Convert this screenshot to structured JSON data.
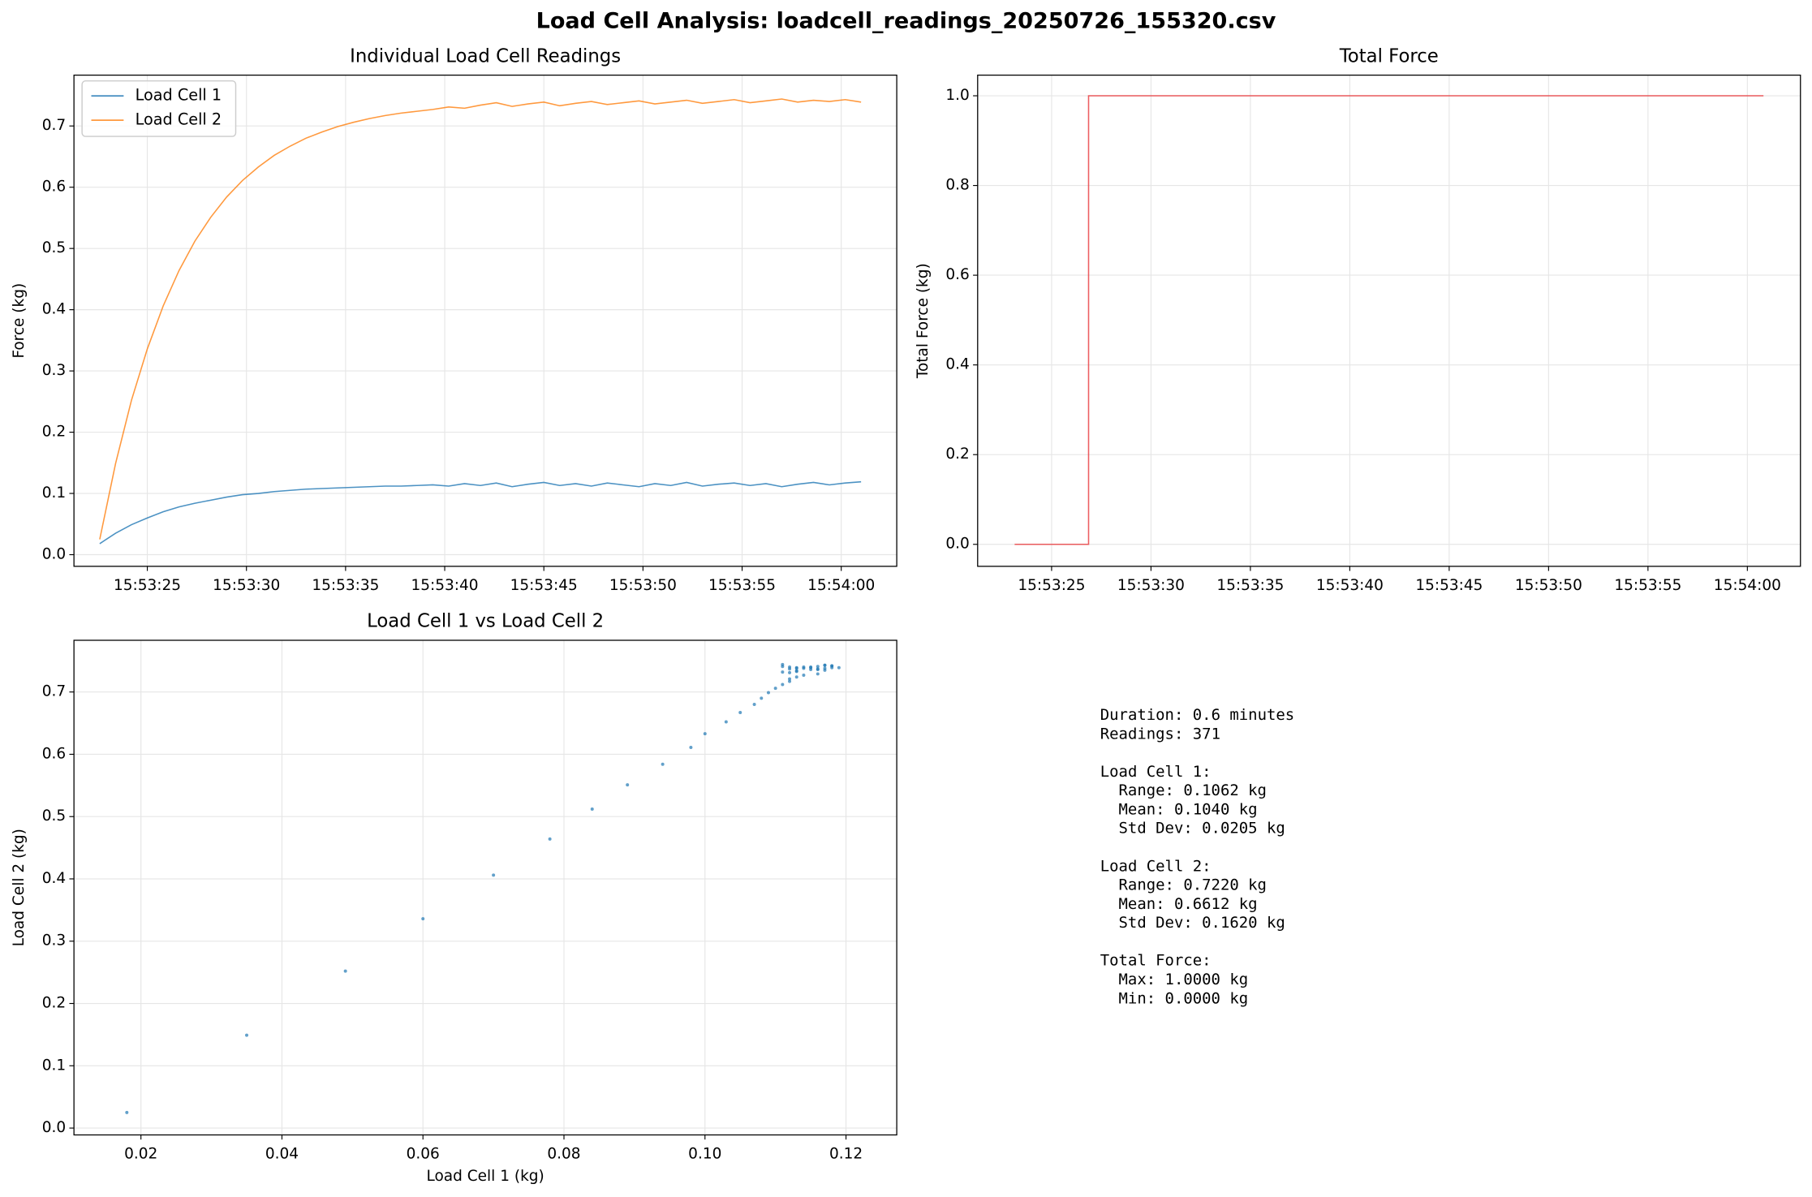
{
  "title": "Load Cell Analysis: loadcell_readings_20250726_155320.csv",
  "chart_data": [
    {
      "type": "line",
      "title": "Individual Load Cell Readings",
      "ylabel": "Force (kg)",
      "grid": true,
      "legend": "upper left",
      "x": [
        57202.6,
        57203.4,
        57204.2,
        57205.0,
        57205.8,
        57206.6,
        57207.4,
        57208.2,
        57209.0,
        57209.8,
        57210.6,
        57211.4,
        57212.2,
        57213.0,
        57213.8,
        57214.6,
        57215.4,
        57216.2,
        57217.0,
        57217.8,
        57218.6,
        57219.4,
        57220.2,
        57221.0,
        57221.8,
        57222.6,
        57223.4,
        57224.2,
        57225.0,
        57225.8,
        57226.6,
        57227.4,
        57228.2,
        57229.0,
        57229.8,
        57230.6,
        57231.4,
        57232.2,
        57233.0,
        57233.8,
        57234.6,
        57235.4,
        57236.2,
        57237.0,
        57237.8,
        57238.6,
        57239.4,
        57240.2,
        57241.0
      ],
      "series": [
        {
          "name": "Load Cell 1",
          "color": "#1f77b4",
          "values": [
            0.018,
            0.035,
            0.049,
            0.06,
            0.07,
            0.078,
            0.084,
            0.089,
            0.094,
            0.098,
            0.1,
            0.103,
            0.105,
            0.107,
            0.108,
            0.109,
            0.11,
            0.111,
            0.112,
            0.112,
            0.113,
            0.114,
            0.112,
            0.116,
            0.113,
            0.117,
            0.111,
            0.115,
            0.118,
            0.113,
            0.116,
            0.112,
            0.117,
            0.114,
            0.111,
            0.116,
            0.113,
            0.118,
            0.112,
            0.115,
            0.117,
            0.113,
            0.116,
            0.111,
            0.115,
            0.118,
            0.114,
            0.117,
            0.119
          ]
        },
        {
          "name": "Load Cell 2",
          "color": "#ff7f0e",
          "values": [
            0.025,
            0.149,
            0.252,
            0.336,
            0.406,
            0.464,
            0.512,
            0.551,
            0.584,
            0.611,
            0.633,
            0.652,
            0.667,
            0.68,
            0.69,
            0.699,
            0.706,
            0.712,
            0.717,
            0.721,
            0.724,
            0.727,
            0.731,
            0.729,
            0.734,
            0.738,
            0.732,
            0.736,
            0.739,
            0.733,
            0.737,
            0.74,
            0.735,
            0.738,
            0.741,
            0.736,
            0.739,
            0.742,
            0.737,
            0.74,
            0.743,
            0.738,
            0.741,
            0.744,
            0.739,
            0.742,
            0.74,
            0.743,
            0.739
          ]
        }
      ],
      "xlim": [
        57201.3,
        57242.8
      ],
      "xticks": [
        {
          "value": 57205,
          "label": "15:53:25"
        },
        {
          "value": 57210,
          "label": "15:53:30"
        },
        {
          "value": 57215,
          "label": "15:53:35"
        },
        {
          "value": 57220,
          "label": "15:53:40"
        },
        {
          "value": 57225,
          "label": "15:53:45"
        },
        {
          "value": 57230,
          "label": "15:53:50"
        },
        {
          "value": 57235,
          "label": "15:53:55"
        },
        {
          "value": 57240,
          "label": "15:54:00"
        }
      ],
      "ylim": [
        -0.019,
        0.783
      ],
      "yticks": [
        {
          "value": 0,
          "label": "0.0"
        },
        0.1,
        0.2,
        0.3,
        0.4,
        0.5,
        0.6,
        0.7
      ]
    },
    {
      "type": "line",
      "title": "Total Force",
      "ylabel": "Total Force (kg)",
      "grid": true,
      "x": [
        57203.14,
        57206.86,
        57206.86,
        57240.81
      ],
      "series": [
        {
          "color": "#e8363a",
          "values": [
            0,
            0,
            1,
            1
          ]
        }
      ],
      "xlim": [
        57201.28,
        57242.67
      ],
      "xticks": [
        {
          "value": 57205,
          "label": "15:53:25"
        },
        {
          "value": 57210,
          "label": "15:53:30"
        },
        {
          "value": 57215,
          "label": "15:53:35"
        },
        {
          "value": 57220,
          "label": "15:53:40"
        },
        {
          "value": 57225,
          "label": "15:53:45"
        },
        {
          "value": 57230,
          "label": "15:53:50"
        },
        {
          "value": 57235,
          "label": "15:53:55"
        },
        {
          "value": 57240,
          "label": "15:54:00"
        }
      ],
      "ylim": [
        -0.049,
        1.046
      ],
      "yticks": [
        {
          "value": 0,
          "label": "0.0"
        },
        0.2,
        0.4,
        0.6,
        0.8,
        {
          "value": 1,
          "label": "1.0"
        }
      ]
    },
    {
      "type": "scatter",
      "title": "Load Cell 1 vs Load Cell 2",
      "xlabel": "Load Cell 1 (kg)",
      "ylabel": "Load Cell 2 (kg)",
      "grid": true,
      "color": "#1f77b4",
      "x": [
        0.018,
        0.035,
        0.049,
        0.06,
        0.07,
        0.078,
        0.084,
        0.089,
        0.094,
        0.098,
        0.1,
        0.103,
        0.105,
        0.107,
        0.108,
        0.109,
        0.11,
        0.111,
        0.112,
        0.112,
        0.113,
        0.114,
        0.112,
        0.116,
        0.113,
        0.117,
        0.111,
        0.115,
        0.118,
        0.113,
        0.116,
        0.112,
        0.117,
        0.114,
        0.111,
        0.116,
        0.113,
        0.118,
        0.112,
        0.115,
        0.117,
        0.113,
        0.116,
        0.111,
        0.115,
        0.118,
        0.114,
        0.117,
        0.119
      ],
      "values": [
        0.025,
        0.149,
        0.252,
        0.336,
        0.406,
        0.464,
        0.512,
        0.551,
        0.584,
        0.611,
        0.633,
        0.652,
        0.667,
        0.68,
        0.69,
        0.699,
        0.706,
        0.712,
        0.717,
        0.721,
        0.724,
        0.727,
        0.731,
        0.729,
        0.734,
        0.738,
        0.732,
        0.736,
        0.739,
        0.733,
        0.737,
        0.74,
        0.735,
        0.738,
        0.741,
        0.736,
        0.739,
        0.742,
        0.737,
        0.74,
        0.743,
        0.738,
        0.741,
        0.744,
        0.739,
        0.742,
        0.74,
        0.743,
        0.739
      ],
      "xlim": [
        0.0105,
        0.1272
      ],
      "xticks": [
        0.02,
        0.04,
        0.06,
        0.08,
        {
          "value": 0.1,
          "label": "0.10"
        },
        0.12
      ],
      "ylim": [
        -0.011,
        0.783
      ],
      "yticks": [
        {
          "value": 0,
          "label": "0.0"
        },
        0.1,
        0.2,
        0.3,
        0.4,
        0.5,
        0.6,
        0.7
      ]
    }
  ],
  "stats": {
    "summary": [
      "Duration: 0.6 minutes",
      "Readings: 371"
    ],
    "sections": [
      {
        "heading": "Load Cell 1:",
        "items": [
          "Range: 0.1062 kg",
          "Mean: 0.1040 kg",
          "Std Dev: 0.0205 kg"
        ]
      },
      {
        "heading": "Load Cell 2:",
        "items": [
          "Range: 0.7220 kg",
          "Mean: 0.6612 kg",
          "Std Dev: 0.1620 kg"
        ]
      },
      {
        "heading": "Total Force:",
        "items": [
          "Max: 1.0000 kg",
          "Min: 0.0000 kg"
        ]
      }
    ]
  }
}
